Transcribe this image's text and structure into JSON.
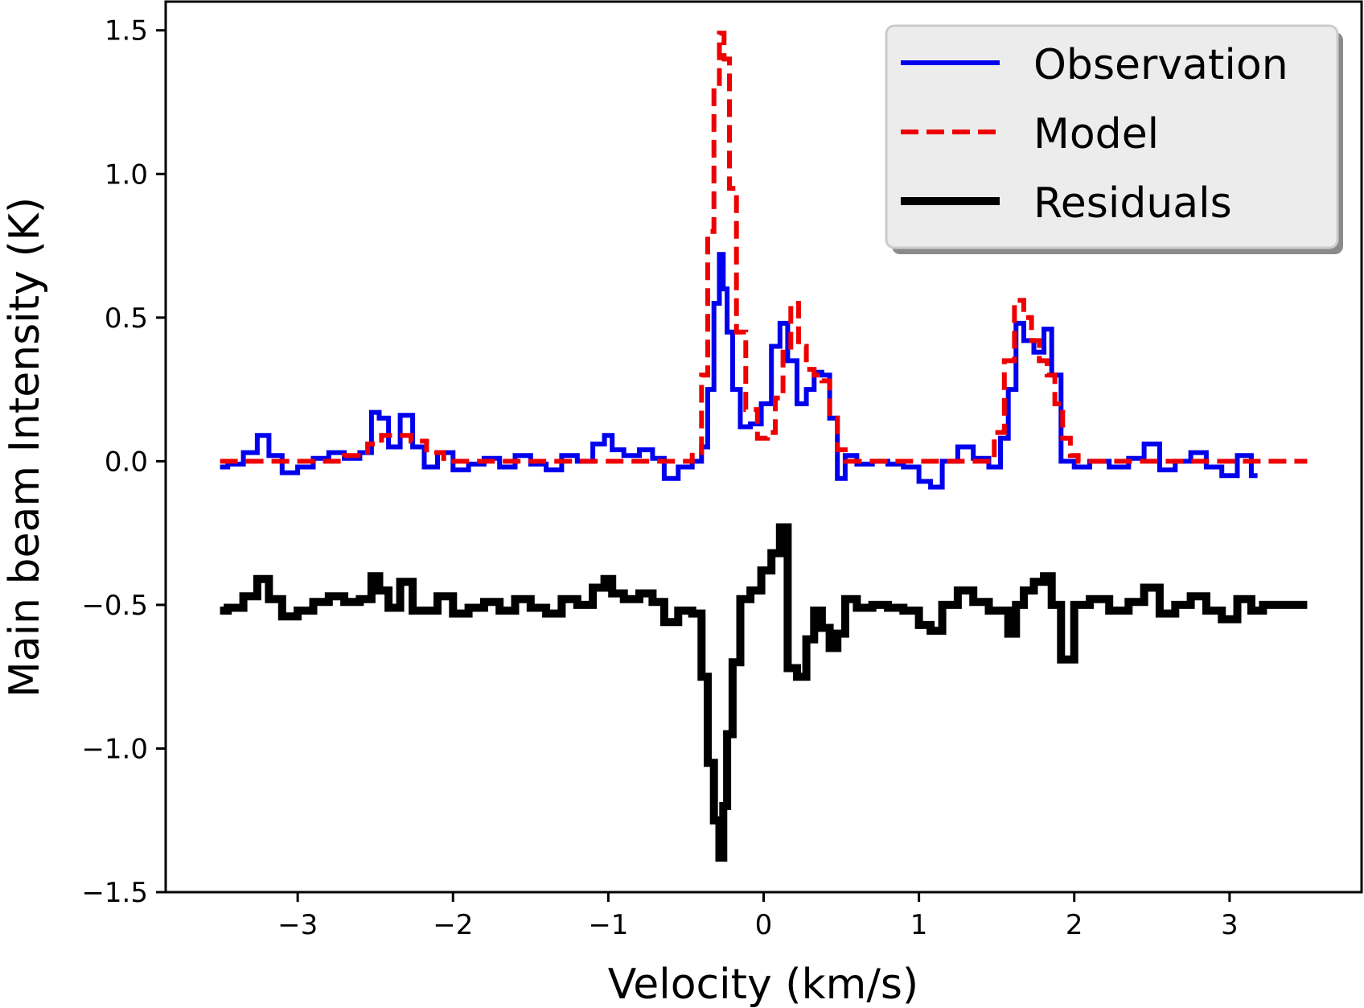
{
  "chart_data": {
    "type": "line",
    "title": "",
    "xlabel": "Velocity (km/s)",
    "ylabel": "Main beam Intensity (K)",
    "xlim": [
      -3.85,
      3.85
    ],
    "ylim": [
      -1.5,
      1.6
    ],
    "xticks": [
      -3,
      -2,
      -1,
      0,
      1,
      2,
      3
    ],
    "xtick_labels": [
      "−3",
      "−2",
      "−1",
      "0",
      "1",
      "2",
      "3"
    ],
    "yticks": [
      -1.5,
      -1.0,
      -0.5,
      0.0,
      0.5,
      1.0,
      1.5
    ],
    "ytick_labels": [
      "−1.5",
      "−1.0",
      "−0.5",
      "0.0",
      "0.5",
      "1.0",
      "1.5"
    ],
    "grid": false,
    "legend_position": "top-right",
    "series": [
      {
        "name": "Observation",
        "color": "#0000ee",
        "style": "solid",
        "x": [
          -3.5,
          -3.4,
          -3.3,
          -3.22,
          -3.15,
          -3.05,
          -2.95,
          -2.85,
          -2.75,
          -2.65,
          -2.55,
          -2.5,
          -2.45,
          -2.38,
          -2.3,
          -2.22,
          -2.15,
          -2.05,
          -1.95,
          -1.85,
          -1.75,
          -1.65,
          -1.55,
          -1.45,
          -1.35,
          -1.25,
          -1.15,
          -1.05,
          -1.0,
          -0.95,
          -0.85,
          -0.75,
          -0.68,
          -0.6,
          -0.5,
          -0.42,
          -0.38,
          -0.34,
          -0.3,
          -0.27,
          -0.25,
          -0.22,
          -0.18,
          -0.12,
          -0.05,
          0.02,
          0.08,
          0.13,
          0.18,
          0.25,
          0.3,
          0.35,
          0.4,
          0.45,
          0.5,
          0.55,
          0.65,
          0.75,
          0.85,
          0.95,
          1.05,
          1.1,
          1.2,
          1.3,
          1.4,
          1.5,
          1.55,
          1.6,
          1.65,
          1.7,
          1.78,
          1.83,
          1.88,
          1.95,
          2.05,
          2.15,
          2.3,
          2.4,
          2.5,
          2.6,
          2.7,
          2.8,
          2.9,
          3.0,
          3.1,
          3.18
        ],
        "y": [
          -0.02,
          -0.01,
          0.03,
          0.09,
          0.02,
          -0.04,
          -0.02,
          0.01,
          0.03,
          0.01,
          0.03,
          0.17,
          0.15,
          0.05,
          0.16,
          0.05,
          -0.02,
          0.03,
          -0.03,
          -0.01,
          0.01,
          -0.02,
          0.02,
          -0.01,
          -0.03,
          0.02,
          0.0,
          0.06,
          0.09,
          0.04,
          0.02,
          0.04,
          0.01,
          -0.06,
          -0.02,
          0.0,
          0.05,
          0.25,
          0.55,
          0.72,
          0.6,
          0.45,
          0.25,
          0.12,
          0.13,
          0.2,
          0.4,
          0.48,
          0.35,
          0.2,
          0.25,
          0.31,
          0.3,
          0.15,
          -0.06,
          0.02,
          -0.01,
          0.0,
          -0.01,
          -0.02,
          -0.07,
          -0.09,
          0.0,
          0.05,
          0.01,
          -0.02,
          0.08,
          0.25,
          0.48,
          0.42,
          0.38,
          0.46,
          0.3,
          0.0,
          -0.02,
          0.0,
          -0.02,
          0.01,
          0.06,
          -0.03,
          0.0,
          0.03,
          -0.02,
          -0.05,
          0.02,
          -0.05
        ]
      },
      {
        "name": "Model",
        "color": "#ee0000",
        "style": "dashed",
        "x": [
          -3.5,
          -2.8,
          -2.6,
          -2.5,
          -2.42,
          -2.32,
          -2.22,
          -2.12,
          -2.0,
          -0.5,
          -0.42,
          -0.38,
          -0.34,
          -0.3,
          -0.27,
          -0.24,
          -0.2,
          -0.15,
          -0.08,
          0.0,
          0.05,
          0.1,
          0.15,
          0.2,
          0.25,
          0.3,
          0.35,
          0.4,
          0.45,
          0.5,
          0.55,
          1.45,
          1.52,
          1.58,
          1.65,
          1.7,
          1.75,
          1.8,
          1.85,
          1.9,
          1.95,
          2.0,
          2.05,
          3.5
        ],
        "y": [
          0.0,
          0.0,
          0.02,
          0.06,
          0.09,
          0.09,
          0.07,
          0.03,
          0.0,
          0.0,
          0.03,
          0.3,
          0.8,
          1.3,
          1.49,
          1.4,
          0.95,
          0.45,
          0.18,
          0.08,
          0.1,
          0.22,
          0.38,
          0.55,
          0.4,
          0.32,
          0.3,
          0.28,
          0.15,
          0.04,
          0.0,
          0.0,
          0.1,
          0.35,
          0.56,
          0.5,
          0.42,
          0.35,
          0.3,
          0.2,
          0.08,
          0.02,
          0.0,
          0.0
        ]
      },
      {
        "name": "Residuals",
        "color": "#000000",
        "style": "solid",
        "x": [
          -3.5,
          -3.4,
          -3.3,
          -3.22,
          -3.15,
          -3.05,
          -2.95,
          -2.85,
          -2.75,
          -2.65,
          -2.55,
          -2.5,
          -2.45,
          -2.38,
          -2.3,
          -2.22,
          -2.15,
          -2.05,
          -1.95,
          -1.85,
          -1.75,
          -1.65,
          -1.55,
          -1.45,
          -1.35,
          -1.25,
          -1.15,
          -1.05,
          -1.0,
          -0.95,
          -0.85,
          -0.75,
          -0.68,
          -0.6,
          -0.5,
          -0.42,
          -0.38,
          -0.34,
          -0.3,
          -0.27,
          -0.25,
          -0.22,
          -0.18,
          -0.12,
          -0.05,
          0.02,
          0.08,
          0.13,
          0.18,
          0.25,
          0.3,
          0.35,
          0.4,
          0.45,
          0.5,
          0.55,
          0.65,
          0.75,
          0.85,
          0.95,
          1.05,
          1.1,
          1.2,
          1.3,
          1.4,
          1.5,
          1.55,
          1.6,
          1.65,
          1.7,
          1.78,
          1.83,
          1.88,
          1.95,
          2.05,
          2.15,
          2.3,
          2.4,
          2.5,
          2.6,
          2.7,
          2.8,
          2.9,
          3.0,
          3.1,
          3.18,
          3.25,
          3.5
        ],
        "y": [
          -0.52,
          -0.51,
          -0.47,
          -0.41,
          -0.48,
          -0.54,
          -0.52,
          -0.49,
          -0.47,
          -0.49,
          -0.48,
          -0.4,
          -0.45,
          -0.51,
          -0.42,
          -0.52,
          -0.52,
          -0.47,
          -0.53,
          -0.51,
          -0.49,
          -0.52,
          -0.48,
          -0.51,
          -0.53,
          -0.48,
          -0.5,
          -0.44,
          -0.41,
          -0.46,
          -0.48,
          -0.46,
          -0.49,
          -0.56,
          -0.52,
          -0.53,
          -0.75,
          -1.05,
          -1.25,
          -1.38,
          -1.2,
          -0.95,
          -0.7,
          -0.48,
          -0.45,
          -0.38,
          -0.32,
          -0.23,
          -0.72,
          -0.75,
          -0.62,
          -0.52,
          -0.58,
          -0.65,
          -0.6,
          -0.48,
          -0.51,
          -0.5,
          -0.51,
          -0.52,
          -0.57,
          -0.59,
          -0.5,
          -0.45,
          -0.49,
          -0.52,
          -0.52,
          -0.6,
          -0.5,
          -0.45,
          -0.42,
          -0.4,
          -0.5,
          -0.69,
          -0.5,
          -0.48,
          -0.52,
          -0.49,
          -0.44,
          -0.53,
          -0.5,
          -0.47,
          -0.52,
          -0.55,
          -0.48,
          -0.52,
          -0.5,
          -0.5
        ]
      }
    ]
  }
}
